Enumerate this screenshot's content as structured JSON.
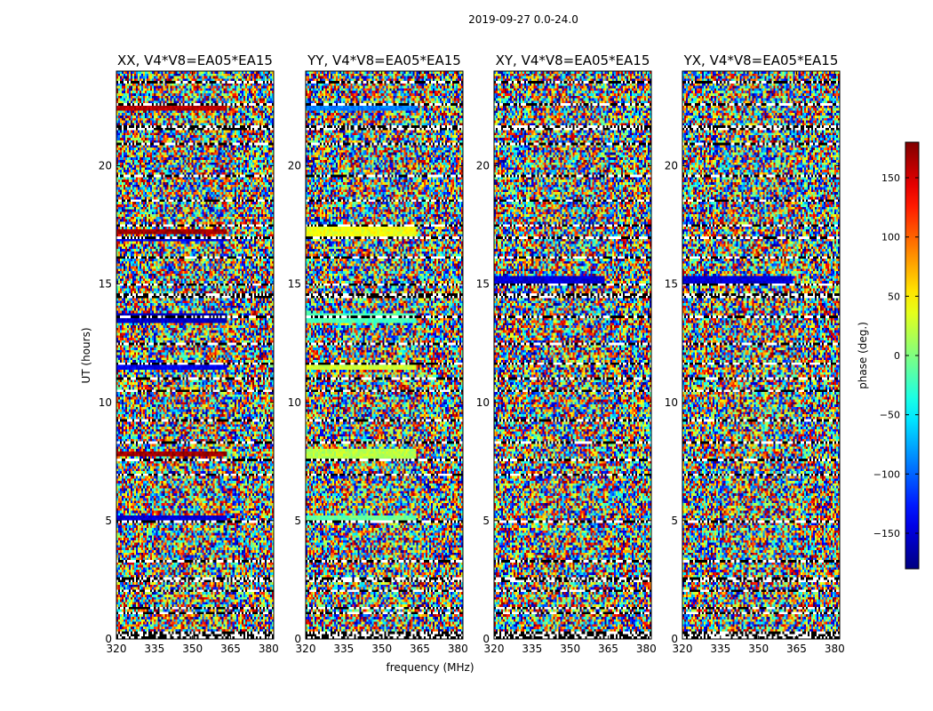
{
  "chart_data": {
    "type": "heatmap",
    "suptitle": "2019-09-27 0.0-24.0",
    "xlabel": "frequency (MHz)",
    "ylabel": "UT (hours)",
    "xlim": [
      320,
      382
    ],
    "ylim": [
      0,
      24
    ],
    "x_ticks": [
      320,
      335,
      350,
      365,
      380
    ],
    "y_ticks": [
      0,
      5,
      10,
      15,
      20
    ],
    "colormap": "jet",
    "colorbar": {
      "label": "phase (deg.)",
      "range": [
        -180,
        180
      ],
      "ticks": [
        150,
        100,
        50,
        0,
        -50,
        -100,
        -150
      ],
      "tick_labels": [
        "150",
        "100",
        "50",
        "0",
        "−50",
        "−100",
        "−150"
      ]
    },
    "panels": [
      {
        "title": "XX, V4*V8=EA05*EA15",
        "seed": 11
      },
      {
        "title": "YY, V4*V8=EA05*EA15",
        "seed": 23
      },
      {
        "title": "XY, V4*V8=EA05*EA15",
        "seed": 37
      },
      {
        "title": "YX, V4*V8=EA05*EA15",
        "seed": 53
      }
    ],
    "flagged_rows_ut": [
      0.1,
      0.25,
      1.1,
      1.3,
      2.0,
      2.5,
      3.3,
      5.0,
      6.9,
      7.6,
      8.3,
      9.2,
      10.5,
      11.0,
      11.6,
      12.5,
      13.6,
      14.5,
      15.0,
      16.1,
      17.0,
      17.5,
      18.5,
      19.6,
      20.9,
      21.6,
      22.6,
      23.5
    ],
    "coherent_bands": [
      {
        "panel": 0,
        "ut": [
          22.3,
          22.5
        ],
        "phase": 160
      },
      {
        "panel": 0,
        "ut": [
          17.1,
          17.3
        ],
        "phase": 170
      },
      {
        "panel": 0,
        "ut": [
          16.8,
          16.95
        ],
        "phase": -140
      },
      {
        "panel": 0,
        "ut": [
          13.4,
          13.8
        ],
        "phase": -155
      },
      {
        "panel": 0,
        "ut": [
          11.4,
          11.6
        ],
        "phase": -140
      },
      {
        "panel": 0,
        "ut": [
          5.05,
          5.25
        ],
        "phase": -150
      },
      {
        "panel": 0,
        "ut": [
          7.7,
          7.9
        ],
        "phase": 170
      },
      {
        "panel": 1,
        "ut": [
          22.3,
          22.5
        ],
        "phase": -90
      },
      {
        "panel": 1,
        "ut": [
          17.0,
          17.4
        ],
        "phase": 40
      },
      {
        "panel": 1,
        "ut": [
          13.4,
          13.8
        ],
        "phase": -20
      },
      {
        "panel": 1,
        "ut": [
          11.4,
          11.7
        ],
        "phase": 30
      },
      {
        "panel": 1,
        "ut": [
          7.6,
          8.0
        ],
        "phase": 20
      },
      {
        "panel": 1,
        "ut": [
          5.0,
          5.2
        ],
        "phase": -10
      },
      {
        "panel": 2,
        "ut": [
          15.0,
          15.3
        ],
        "phase": -150
      },
      {
        "panel": 3,
        "ut": [
          15.0,
          15.3
        ],
        "phase": -150
      }
    ]
  }
}
